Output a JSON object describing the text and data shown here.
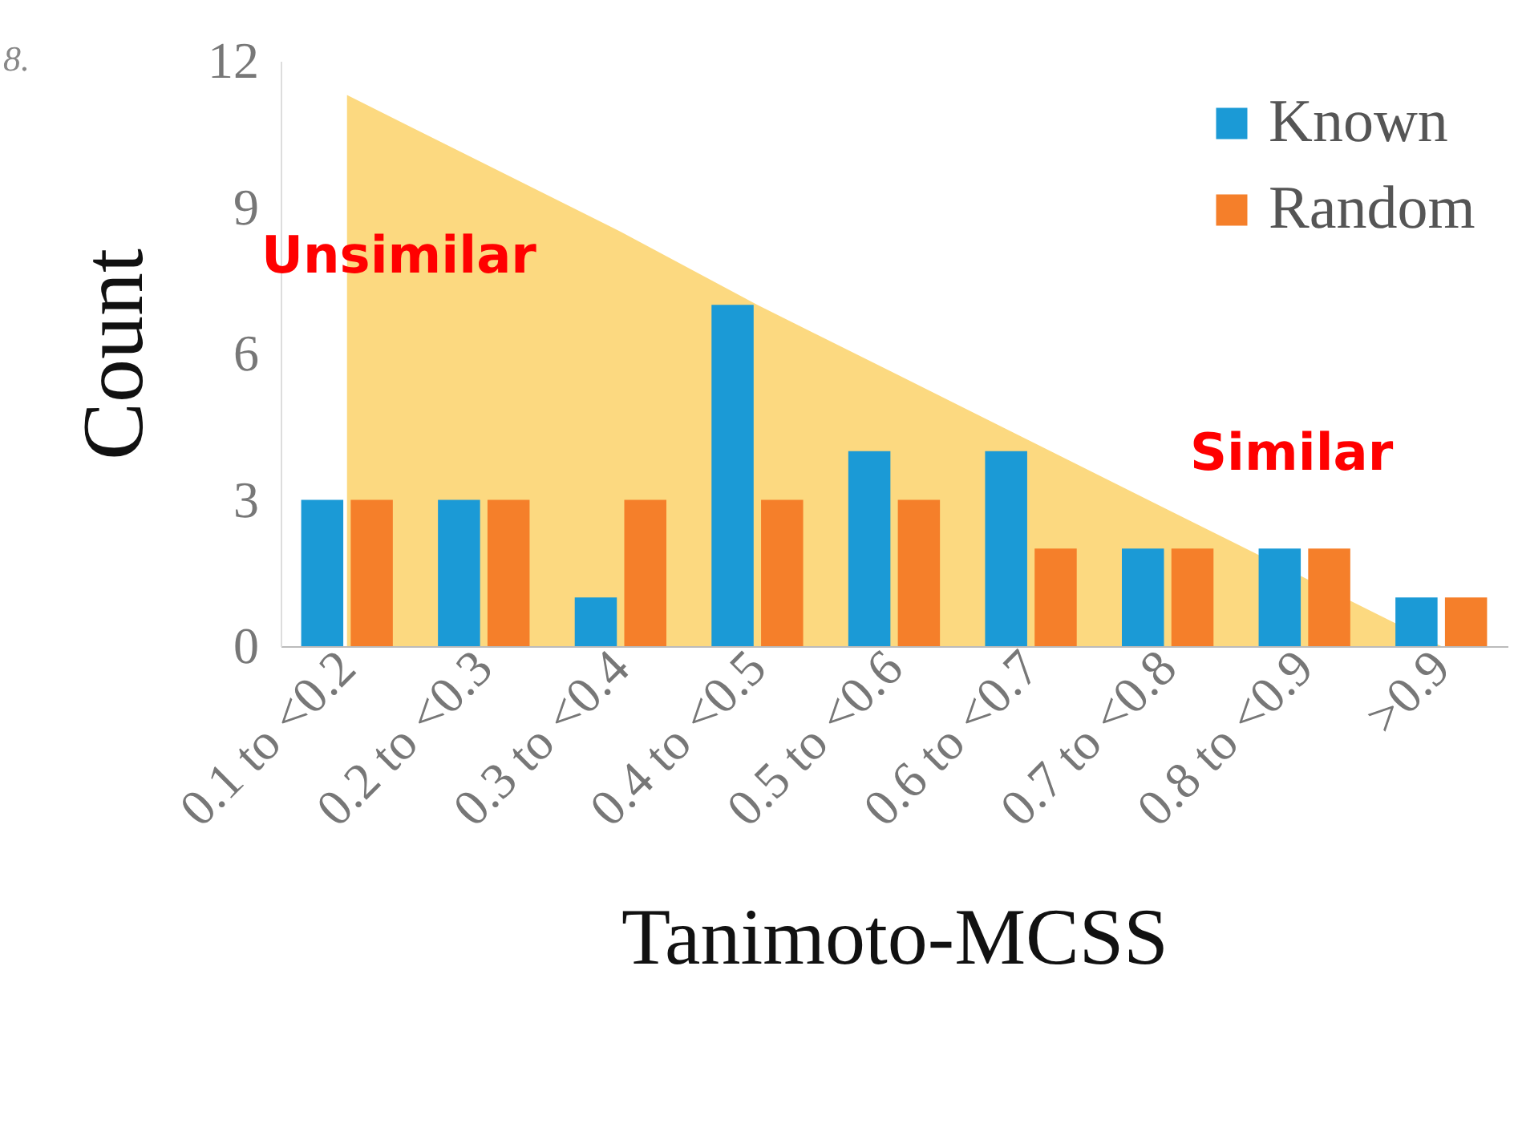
{
  "chart_data": {
    "type": "bar",
    "xlabel": "Tanimoto-MCSS",
    "ylabel": "Count",
    "categories": [
      "0.1 to <0.2",
      "0.2 to <0.3",
      "0.3 to <0.4",
      "0.4 to <0.5",
      "0.5 to <0.6",
      "0.6 to <0.7",
      "0.7 to <0.8",
      "0.8 to <0.9",
      ">0.9"
    ],
    "series": [
      {
        "type": "area",
        "color": "#fcd980",
        "values": [
          11.3,
          9.9,
          8.5,
          7,
          5.6,
          4.2,
          2.8,
          1.4,
          0
        ]
      },
      {
        "name": "Known",
        "color": "#1b9ad6",
        "values": [
          3,
          3,
          1,
          7,
          4,
          4,
          2,
          2,
          1
        ]
      },
      {
        "name": "Random",
        "color": "#f57f2a",
        "values": [
          3,
          3,
          3,
          3,
          3,
          2,
          2,
          2,
          1
        ]
      }
    ],
    "ylim": [
      0,
      12
    ],
    "yticks": [
      0,
      3,
      6,
      9,
      12
    ],
    "grid": false,
    "legend": "top right",
    "annotations": [
      "8.",
      "Unsimilar",
      "Similar"
    ]
  }
}
